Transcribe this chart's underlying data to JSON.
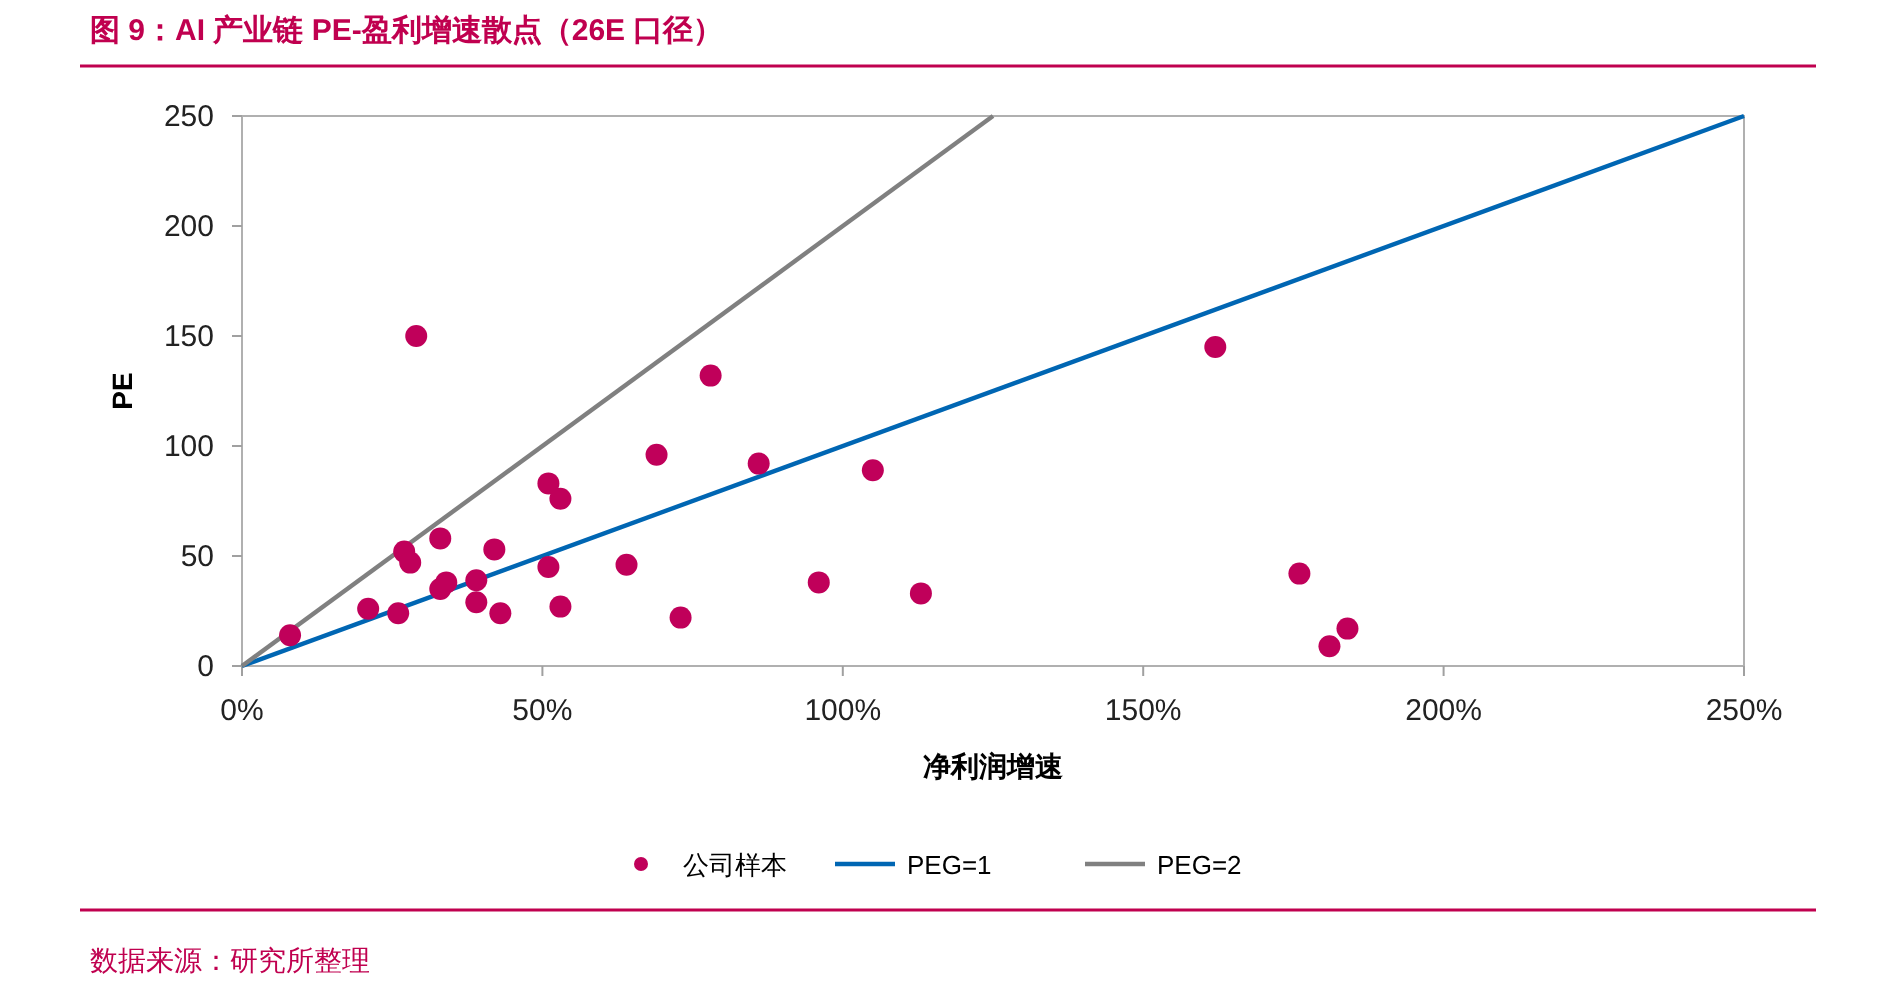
{
  "chart_data": {
    "type": "scatter",
    "title": "图 9：AI 产业链 PE-盈利增速散点（26E 口径）",
    "xlabel": "净利润增速",
    "ylabel": "PE",
    "xlim": [
      0,
      250
    ],
    "ylim": [
      0,
      250
    ],
    "xticks": [
      {
        "value": 0,
        "label": "0%"
      },
      {
        "value": 50,
        "label": "50%"
      },
      {
        "value": 100,
        "label": "100%"
      },
      {
        "value": 150,
        "label": "150%"
      },
      {
        "value": 200,
        "label": "200%"
      },
      {
        "value": 250,
        "label": "250%"
      }
    ],
    "yticks": [
      0,
      50,
      100,
      150,
      200,
      250
    ],
    "grid": false,
    "legend": "bottom",
    "series": [
      {
        "name": "公司样本",
        "color": "#c0005a",
        "marker": "circle",
        "x": [
          8,
          21,
          26,
          27,
          28,
          29,
          33,
          33,
          34,
          39,
          39,
          42,
          43,
          51,
          51,
          53,
          53,
          64,
          69,
          73,
          78,
          86,
          105,
          96,
          113,
          162,
          176,
          181,
          184
        ],
        "values": [
          14,
          26,
          24,
          52,
          47,
          150,
          58,
          35,
          38,
          39,
          29,
          53,
          24,
          45,
          83,
          76,
          27,
          46,
          96,
          22,
          132,
          92,
          89,
          38,
          33,
          145,
          42,
          9,
          17
        ]
      },
      {
        "name": "PEG=1",
        "type": "line",
        "color": "#0066b3",
        "line_style": "solid",
        "marker": "none",
        "x": [
          0,
          250
        ],
        "values": [
          0,
          250
        ]
      },
      {
        "name": "PEG=2",
        "type": "line",
        "color": "#808080",
        "line_style": "solid",
        "marker": "none",
        "x": [
          0,
          125
        ],
        "values": [
          0,
          250
        ]
      }
    ],
    "annotations": [
      "数据来源：研究所整理"
    ]
  }
}
